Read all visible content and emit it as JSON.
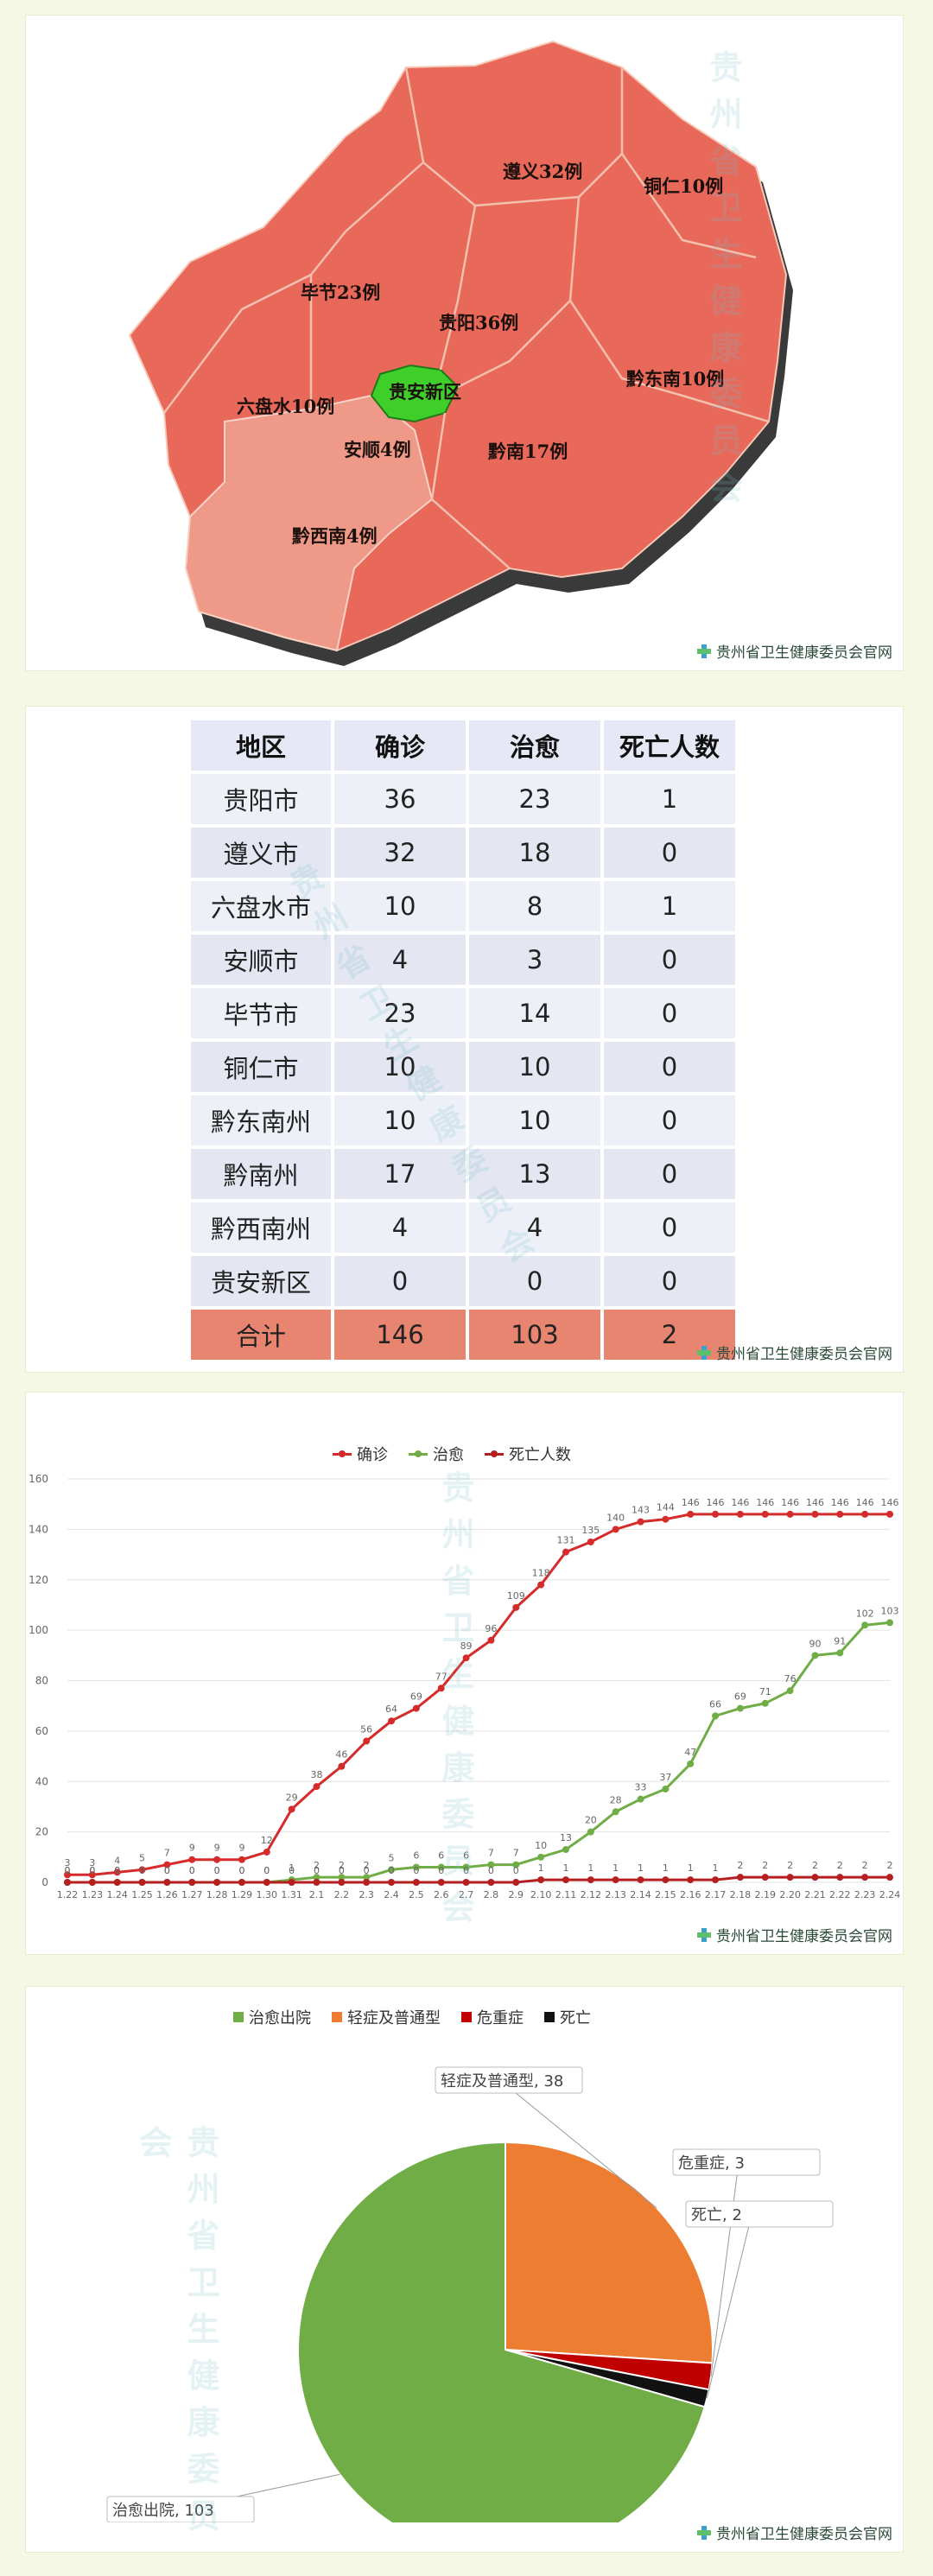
{
  "map": {
    "regions": [
      {
        "label": "遵义32例"
      },
      {
        "label": "铜仁10例"
      },
      {
        "label": "毕节23例"
      },
      {
        "label": "贵阳36例"
      },
      {
        "label": "贵安新区"
      },
      {
        "label": "黔东南10例"
      },
      {
        "label": "六盘水10例"
      },
      {
        "label": "安顺4例"
      },
      {
        "label": "黔南17例"
      },
      {
        "label": "黔西南4例"
      }
    ],
    "colors": {
      "main": "#e8685a",
      "light": "#ef9a88",
      "guian": "#3fcf2a",
      "shadow": "#3a3a3a"
    }
  },
  "source_label": "贵州省卫生健康委员会官网",
  "watermark_text": "贵州省卫生健康委员会",
  "chart_data": [
    {
      "type": "table",
      "headers": [
        "地区",
        "确诊",
        "治愈",
        "死亡人数"
      ],
      "rows": [
        [
          "贵阳市",
          "36",
          "23",
          "1"
        ],
        [
          "遵义市",
          "32",
          "18",
          "0"
        ],
        [
          "六盘水市",
          "10",
          "8",
          "1"
        ],
        [
          "安顺市",
          "4",
          "3",
          "0"
        ],
        [
          "毕节市",
          "23",
          "14",
          "0"
        ],
        [
          "铜仁市",
          "10",
          "10",
          "0"
        ],
        [
          "黔东南州",
          "10",
          "10",
          "0"
        ],
        [
          "黔南州",
          "17",
          "13",
          "0"
        ],
        [
          "黔西南州",
          "4",
          "4",
          "0"
        ],
        [
          "贵安新区",
          "0",
          "0",
          "0"
        ]
      ],
      "total": [
        "合计",
        "146",
        "103",
        "2"
      ]
    },
    {
      "type": "line",
      "x": [
        "1.22",
        "1.23",
        "1.24",
        "1.25",
        "1.26",
        "1.27",
        "1.28",
        "1.29",
        "1.30",
        "1.31",
        "2.1",
        "2.2",
        "2.3",
        "2.4",
        "2.5",
        "2.6",
        "2.7",
        "2.8",
        "2.9",
        "2.10",
        "2.11",
        "2.12",
        "2.13",
        "2.14",
        "2.15",
        "2.16",
        "2.17",
        "2.18",
        "2.19",
        "2.20",
        "2.21",
        "2.22",
        "2.23",
        "2.24"
      ],
      "series": [
        {
          "name": "确诊",
          "color": "#d52b2b",
          "values": [
            3,
            3,
            4,
            5,
            7,
            9,
            9,
            9,
            12,
            29,
            38,
            46,
            56,
            64,
            69,
            77,
            89,
            96,
            109,
            118,
            131,
            135,
            140,
            143,
            144,
            146,
            146,
            146,
            146,
            146,
            146,
            146,
            146,
            146
          ]
        },
        {
          "name": "治愈",
          "color": "#70ad47",
          "values": [
            0,
            0,
            0,
            0,
            0,
            0,
            0,
            0,
            0,
            1,
            2,
            2,
            2,
            5,
            6,
            6,
            6,
            7,
            7,
            10,
            13,
            20,
            28,
            33,
            37,
            47,
            66,
            69,
            71,
            76,
            90,
            91,
            102,
            103
          ]
        },
        {
          "name": "死亡人数",
          "color": "#b51f1f",
          "values": [
            0,
            0,
            0,
            0,
            0,
            0,
            0,
            0,
            0,
            0,
            0,
            0,
            0,
            0,
            0,
            0,
            0,
            0,
            0,
            1,
            1,
            1,
            1,
            1,
            1,
            1,
            1,
            2,
            2,
            2,
            2,
            2,
            2,
            2
          ]
        }
      ],
      "ylim": [
        0,
        160
      ],
      "yticks": [
        0,
        20,
        40,
        60,
        80,
        100,
        120,
        140,
        160
      ],
      "grid": true,
      "legend": "top-center"
    },
    {
      "type": "pie",
      "slices": [
        {
          "name": "治愈出院",
          "value": 103,
          "color": "#70ad47",
          "label": "治愈出院, 103"
        },
        {
          "name": "轻症及普通型",
          "value": 38,
          "color": "#ed7d31",
          "label": "轻症及普通型, 38"
        },
        {
          "name": "危重症",
          "value": 3,
          "color": "#c00000",
          "label": "危重症, 3"
        },
        {
          "name": "死亡",
          "value": 2,
          "color": "#111111",
          "label": "死亡, 2"
        }
      ],
      "legend": "top-center"
    }
  ]
}
